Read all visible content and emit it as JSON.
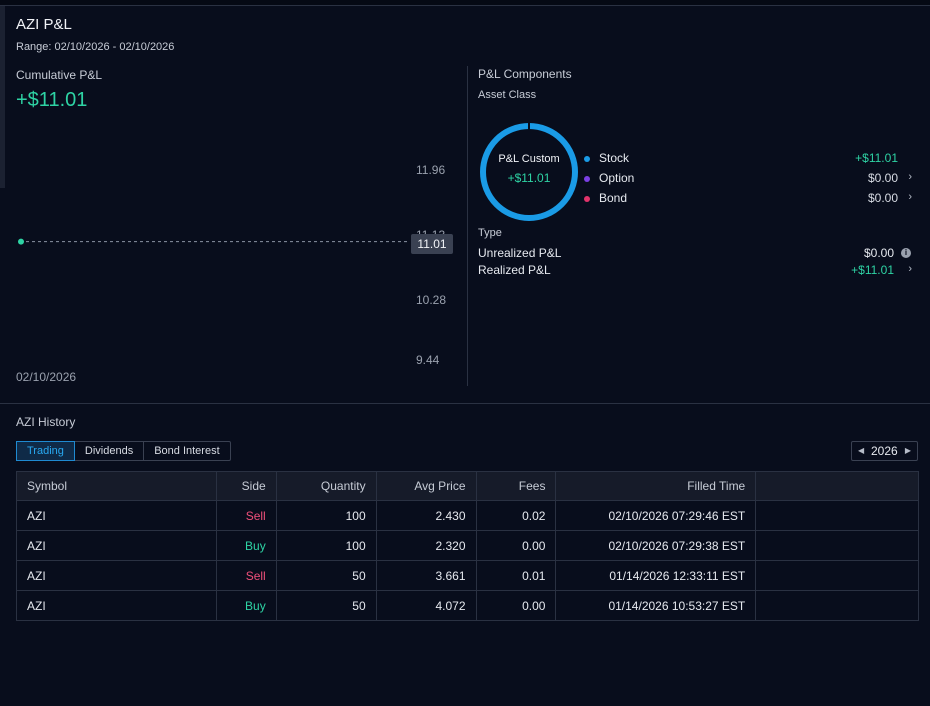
{
  "header": {
    "title": "AZI P&L",
    "range": "Range: 02/10/2026 - 02/10/2026"
  },
  "cumulative": {
    "label": "Cumulative P&L",
    "value": "+$11.01",
    "y_ticks": [
      "11.96",
      "11.13",
      "10.28",
      "9.44"
    ],
    "current_price_tag": "11.01",
    "x_label": "02/10/2026",
    "chart_data": {
      "type": "line",
      "x": [
        "02/10/2026"
      ],
      "values": [
        11.01
      ],
      "ylim": [
        9.44,
        11.96
      ]
    }
  },
  "components": {
    "title": "P&L Components",
    "asset_class_label": "Asset Class",
    "donut_label": "P&L Custom",
    "donut_value": "+$11.01",
    "donut_color": "#1a9be6",
    "legend": [
      {
        "name": "Stock",
        "value": "+$11.01",
        "dot_color": "#1a9be6",
        "value_color": "#2ed3a4",
        "chevron": ""
      },
      {
        "name": "Option",
        "value": "$0.00",
        "dot_color": "#7b3fe4",
        "value_color": "#e6e9ef",
        "chevron": "›"
      },
      {
        "name": "Bond",
        "value": "$0.00",
        "dot_color": "#e2336b",
        "value_color": "#e6e9ef",
        "chevron": "›"
      }
    ],
    "type_label": "Type",
    "unrealized_label": "Unrealized P&L",
    "unrealized_value": "$0.00",
    "realized_label": "Realized P&L",
    "realized_value": "+$11.01",
    "realized_chevron": "›"
  },
  "history": {
    "title": "AZI History",
    "tabs": [
      "Trading",
      "Dividends",
      "Bond Interest"
    ],
    "active_tab": "Trading",
    "year": "2026",
    "year_prev": "◀",
    "year_next": "▶",
    "columns": [
      "Symbol",
      "Side",
      "Quantity",
      "Avg Price",
      "Fees",
      "Filled Time"
    ],
    "rows": [
      {
        "symbol": "AZI",
        "side": "Sell",
        "quantity": "100",
        "avg_price": "2.430",
        "fees": "0.02",
        "filled_time": "02/10/2026 07:29:46 EST"
      },
      {
        "symbol": "AZI",
        "side": "Buy",
        "quantity": "100",
        "avg_price": "2.320",
        "fees": "0.00",
        "filled_time": "02/10/2026 07:29:38 EST"
      },
      {
        "symbol": "AZI",
        "side": "Sell",
        "quantity": "50",
        "avg_price": "3.661",
        "fees": "0.01",
        "filled_time": "01/14/2026 12:33:11 EST"
      },
      {
        "symbol": "AZI",
        "side": "Buy",
        "quantity": "50",
        "avg_price": "4.072",
        "fees": "0.00",
        "filled_time": "01/14/2026 10:53:27 EST"
      }
    ]
  }
}
